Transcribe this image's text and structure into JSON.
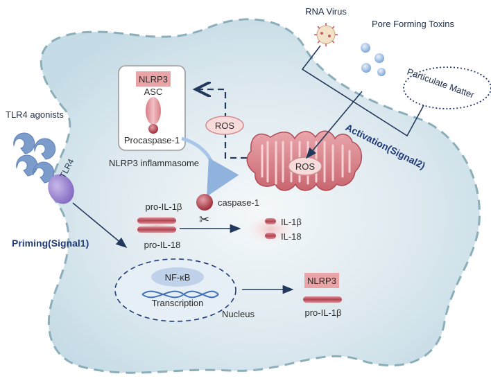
{
  "labels": {
    "rna_virus": "RNA Virus",
    "pore_forming_toxins": "Pore Forming Toxins",
    "particulate_matter": "Particulate Matter",
    "tlr4_agonists": "TLR4 agonists",
    "tlr4": "TLR4",
    "nlrp3_top": "NLRP3",
    "asc": "ASC",
    "procaspase": "Procaspase-1",
    "inflammasome": "NLRP3 inflammasome",
    "ros_cyto": "ROS",
    "ros_mito": "ROS",
    "activation": "Activation(Signal2)",
    "caspase": "caspase-1",
    "pro_il1b": "pro-IL-1β",
    "pro_il18": "pro-IL-18",
    "il1b": "IL-1β",
    "il18": "IL-18",
    "priming": "Priming(Signal1)",
    "nfkb": "NF-κB",
    "transcription": "Transcription",
    "nucleus": "Nucleus",
    "nlrp3_out": "NLRP3",
    "pro_il1b_out": "pro-IL-1β",
    "scissors": "✂"
  },
  "colors": {
    "cell_fill": "#d7e7ee",
    "cell_border": "#8aaeba",
    "pink": "#e7a6a6",
    "dark_red": "#b0404a",
    "navy": "#1f3a78",
    "arrow": "#22385c"
  }
}
